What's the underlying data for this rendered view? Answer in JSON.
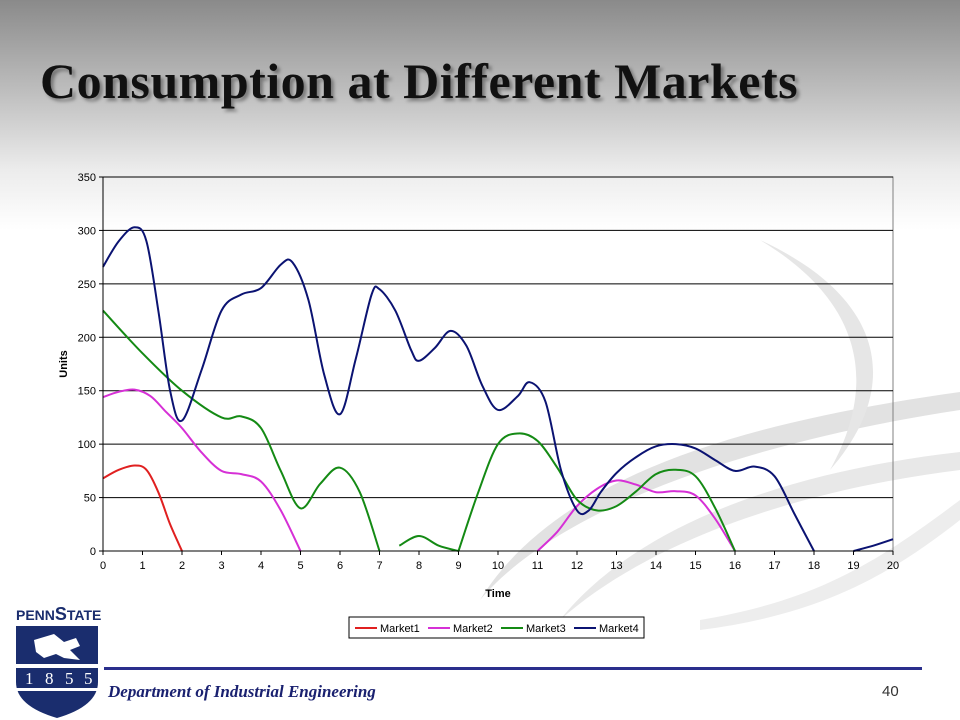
{
  "slide": {
    "title": "Consumption at Different Markets",
    "department": "Department of Industrial Engineering",
    "page_number": "40",
    "logo": {
      "name_prefix": "PENN",
      "name_big": "S",
      "name_suffix": "TATE",
      "year_digits": [
        "1",
        "8",
        "5",
        "5"
      ],
      "color": "#1a2d6e"
    }
  },
  "chart_data": {
    "type": "line",
    "title": "",
    "xlabel": "Time",
    "ylabel": "Units",
    "xlim": [
      0,
      20
    ],
    "ylim": [
      0,
      350
    ],
    "x_ticks": [
      "0",
      "1",
      "2",
      "3",
      "4",
      "5",
      "6",
      "7",
      "8",
      "9",
      "10",
      "11",
      "12",
      "13",
      "14",
      "15",
      "16",
      "17",
      "18",
      "19",
      "20"
    ],
    "y_ticks": [
      "0",
      "50",
      "100",
      "150",
      "200",
      "250",
      "300",
      "350"
    ],
    "grid": "horizontal",
    "legend_position": "bottom",
    "series": [
      {
        "name": "Market1",
        "color": "#e02020",
        "segments": [
          [
            [
              0,
              68
            ],
            [
              0.4,
              76
            ],
            [
              0.8,
              80
            ],
            [
              1.1,
              76
            ],
            [
              1.4,
              55
            ],
            [
              1.7,
              25
            ],
            [
              2,
              0
            ]
          ]
        ]
      },
      {
        "name": "Market2",
        "color": "#d630d6",
        "segments": [
          [
            [
              0,
              144
            ],
            [
              0.4,
              149
            ],
            [
              0.8,
              151
            ],
            [
              1.2,
              145
            ],
            [
              1.6,
              130
            ],
            [
              2,
              115
            ],
            [
              2.5,
              92
            ],
            [
              3,
              75
            ],
            [
              3.5,
              72
            ],
            [
              4,
              65
            ],
            [
              4.5,
              38
            ],
            [
              5,
              0
            ]
          ],
          [
            [
              11,
              0
            ],
            [
              11.5,
              18
            ],
            [
              12,
              42
            ],
            [
              12.5,
              58
            ],
            [
              13,
              66
            ],
            [
              13.5,
              62
            ],
            [
              14,
              55
            ],
            [
              14.5,
              56
            ],
            [
              15,
              52
            ],
            [
              15.5,
              30
            ],
            [
              16,
              0
            ]
          ]
        ]
      },
      {
        "name": "Market3",
        "color": "#148a14",
        "segments": [
          [
            [
              0,
              225
            ],
            [
              1,
              185
            ],
            [
              2,
              150
            ],
            [
              3,
              125
            ],
            [
              3.5,
              126
            ],
            [
              4,
              115
            ],
            [
              4.5,
              75
            ],
            [
              5,
              40
            ],
            [
              5.5,
              63
            ],
            [
              6,
              78
            ],
            [
              6.5,
              55
            ],
            [
              7,
              0
            ]
          ],
          [
            [
              7.5,
              5
            ],
            [
              8,
              14
            ],
            [
              8.5,
              5
            ],
            [
              9,
              0
            ]
          ],
          [
            [
              9,
              0
            ],
            [
              9.5,
              55
            ],
            [
              10,
              100
            ],
            [
              10.5,
              110
            ],
            [
              11,
              103
            ],
            [
              11.5,
              78
            ],
            [
              12,
              48
            ],
            [
              12.5,
              38
            ],
            [
              13,
              42
            ],
            [
              13.5,
              56
            ],
            [
              14,
              72
            ],
            [
              14.5,
              76
            ],
            [
              15,
              70
            ],
            [
              15.5,
              40
            ],
            [
              16,
              0
            ]
          ]
        ]
      },
      {
        "name": "Market4",
        "color": "#0b1372",
        "segments": [
          [
            [
              0,
              266
            ],
            [
              0.4,
              290
            ],
            [
              0.8,
              303
            ],
            [
              1.1,
              290
            ],
            [
              1.4,
              225
            ],
            [
              1.7,
              150
            ],
            [
              2,
              122
            ],
            [
              2.5,
              170
            ],
            [
              3,
              225
            ],
            [
              3.5,
              240
            ],
            [
              4,
              246
            ],
            [
              4.5,
              268
            ],
            [
              4.8,
              270
            ],
            [
              5.2,
              235
            ],
            [
              5.6,
              165
            ],
            [
              6,
              128
            ],
            [
              6.4,
              180
            ],
            [
              6.8,
              240
            ],
            [
              7,
              245
            ],
            [
              7.4,
              225
            ],
            [
              7.8,
              188
            ],
            [
              8,
              178
            ],
            [
              8.4,
              190
            ],
            [
              8.8,
              206
            ],
            [
              9.2,
              192
            ],
            [
              9.6,
              155
            ],
            [
              10,
              132
            ],
            [
              10.5,
              145
            ],
            [
              10.8,
              158
            ],
            [
              11.2,
              140
            ],
            [
              11.6,
              75
            ],
            [
              12,
              38
            ],
            [
              12.3,
              38
            ],
            [
              12.6,
              55
            ],
            [
              13,
              73
            ],
            [
              13.5,
              88
            ],
            [
              14,
              98
            ],
            [
              14.5,
              100
            ],
            [
              15,
              96
            ],
            [
              15.5,
              85
            ],
            [
              16,
              75
            ],
            [
              16.5,
              79
            ],
            [
              17,
              70
            ],
            [
              17.5,
              35
            ],
            [
              18,
              0
            ]
          ],
          [
            [
              19,
              0
            ],
            [
              19.5,
              5
            ],
            [
              20,
              11
            ]
          ]
        ]
      }
    ]
  }
}
